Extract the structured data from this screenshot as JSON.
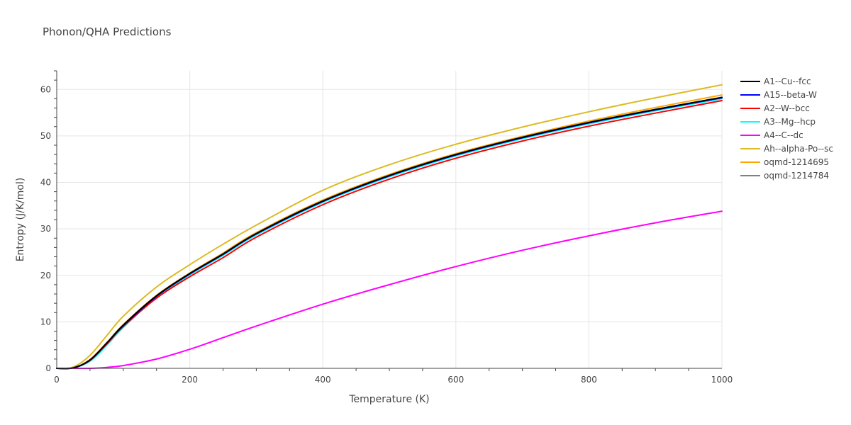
{
  "chart_data": {
    "type": "line",
    "title": "Phonon/QHA Predictions",
    "xlabel": "Temperature (K)",
    "ylabel": "Entropy (J/K/mol)",
    "xlim": [
      0,
      1000
    ],
    "ylim": [
      0,
      64
    ],
    "xticks": [
      0,
      200,
      400,
      600,
      800,
      1000
    ],
    "yticks": [
      0,
      10,
      20,
      30,
      40,
      50,
      60
    ],
    "grid": true,
    "legend_position": "top-right",
    "x": [
      0,
      25,
      50,
      75,
      100,
      150,
      200,
      250,
      300,
      400,
      500,
      600,
      700,
      800,
      900,
      1000
    ],
    "series": [
      {
        "name": "A1--Cu--fcc",
        "color": "#000000",
        "values": [
          0,
          0.1,
          1.8,
          5.4,
          9.3,
          15.6,
          20.4,
          24.6,
          29.0,
          36.0,
          41.5,
          46.0,
          49.7,
          52.9,
          55.7,
          58.3
        ]
      },
      {
        "name": "A15--beta-W",
        "color": "#0000ff",
        "values": [
          0,
          0.1,
          1.8,
          5.4,
          9.2,
          15.5,
          20.3,
          24.5,
          28.9,
          35.9,
          41.4,
          45.9,
          49.6,
          52.8,
          55.6,
          58.2
        ]
      },
      {
        "name": "A2--W--bcc",
        "color": "#ff0000",
        "values": [
          0,
          0.1,
          1.7,
          5.2,
          9.0,
          15.1,
          19.7,
          23.8,
          28.2,
          35.2,
          40.7,
          45.2,
          48.9,
          52.1,
          54.9,
          57.6
        ]
      },
      {
        "name": "A3--Mg--hcp",
        "color": "#00ffff",
        "values": [
          0,
          0.1,
          1.5,
          4.9,
          8.8,
          15.2,
          20.1,
          24.3,
          28.7,
          35.7,
          41.2,
          45.7,
          49.4,
          52.6,
          55.4,
          58.0
        ]
      },
      {
        "name": "A4--C--dc",
        "color": "#ff00ff",
        "values": [
          0,
          0,
          0,
          0.2,
          0.6,
          2.0,
          4.1,
          6.6,
          9.1,
          13.8,
          18.0,
          21.9,
          25.4,
          28.5,
          31.3,
          33.8
        ]
      },
      {
        "name": "Ah--alpha-Po--sc",
        "color": "#ddbb22",
        "values": [
          0,
          0.3,
          2.8,
          7.0,
          11.2,
          17.5,
          22.3,
          26.7,
          30.8,
          38.3,
          43.8,
          48.2,
          51.9,
          55.2,
          58.2,
          61.0
        ]
      },
      {
        "name": "oqmd-1214695",
        "color": "#ffa500",
        "values": [
          0,
          0.1,
          1.9,
          5.5,
          9.4,
          15.7,
          20.5,
          24.8,
          29.2,
          36.2,
          41.7,
          46.2,
          49.9,
          53.2,
          56.1,
          58.8
        ]
      },
      {
        "name": "oqmd-1214784",
        "color": "#808080",
        "values": [
          0,
          0.1,
          1.8,
          5.3,
          9.2,
          15.5,
          20.2,
          24.4,
          28.8,
          35.8,
          41.3,
          45.8,
          49.5,
          52.7,
          55.5,
          58.1
        ]
      }
    ]
  }
}
